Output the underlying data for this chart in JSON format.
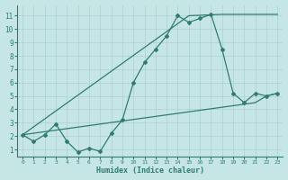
{
  "line1_x": [
    0,
    1,
    2,
    3,
    4,
    5,
    6,
    7,
    8,
    9,
    10,
    11,
    12,
    13,
    14,
    15,
    16,
    17,
    18,
    19,
    20,
    21,
    22,
    23
  ],
  "line1_y": [
    2.1,
    1.6,
    2.1,
    2.9,
    1.6,
    0.8,
    1.1,
    0.85,
    2.2,
    3.2,
    6.0,
    7.5,
    8.5,
    9.5,
    11.0,
    10.5,
    10.8,
    11.1,
    8.5,
    5.2,
    4.5,
    5.2,
    5.0,
    5.2
  ],
  "line2_x": [
    0,
    15,
    18,
    23
  ],
  "line2_y": [
    2.1,
    11.0,
    11.1,
    11.1
  ],
  "line3_x": [
    0,
    21,
    22,
    23
  ],
  "line3_y": [
    2.1,
    4.5,
    5.0,
    5.2
  ],
  "color": "#2e7d6e",
  "bg_color": "#c6e6e6",
  "grid_color": "#aed0d0",
  "xlabel": "Humidex (Indice chaleur)",
  "ylim": [
    0.5,
    11.8
  ],
  "xlim": [
    -0.5,
    23.5
  ],
  "yticks": [
    1,
    2,
    3,
    4,
    5,
    6,
    7,
    8,
    9,
    10,
    11
  ],
  "xticks": [
    0,
    1,
    2,
    3,
    4,
    5,
    6,
    7,
    8,
    9,
    10,
    11,
    12,
    13,
    14,
    15,
    16,
    17,
    18,
    19,
    20,
    21,
    22,
    23
  ]
}
